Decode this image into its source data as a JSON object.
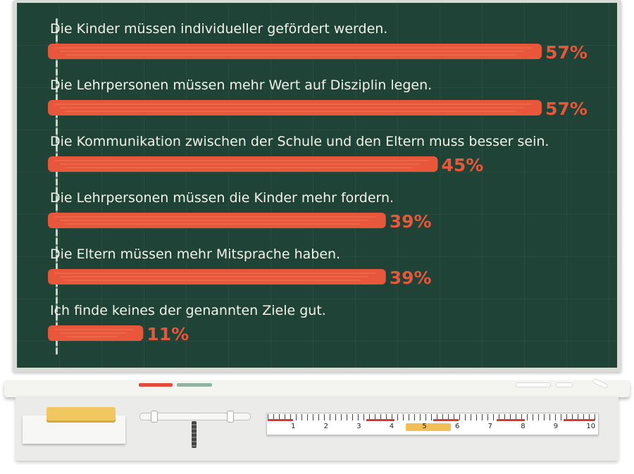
{
  "chart_data": {
    "type": "bar",
    "orientation": "horizontal",
    "categories": [
      "Die Kinder müssen individueller gefördert werden.",
      "Die Lehrpersonen müssen mehr Wert auf Disziplin legen.",
      "Die Kommunikation zwischen der Schule und den Eltern muss besser sein.",
      "Die Lehrpersonen müssen die Kinder mehr fordern.",
      "Die Eltern müssen mehr Mitsprache haben.",
      "Ich finde keines der genannten Ziele gut."
    ],
    "values": [
      57,
      57,
      45,
      39,
      39,
      11
    ],
    "value_labels": [
      "57%",
      "57%",
      "45%",
      "39%",
      "39%",
      "11%"
    ],
    "unit": "%",
    "xlim": [
      0,
      100
    ],
    "grid": true,
    "legend": "none",
    "colors": {
      "bar": "#e8573a",
      "board": "#1f4336",
      "label": "#f2f2ea",
      "value": "#e8573a"
    }
  },
  "ruler": {
    "numbers": [
      "1",
      "2",
      "3",
      "4",
      "5",
      "6",
      "7",
      "8",
      "9",
      "10"
    ]
  },
  "icons": {
    "sponge": "sponge-icon",
    "slider": "slider-icon",
    "ruler": "ruler-icon",
    "chalk": "chalk-icon"
  }
}
